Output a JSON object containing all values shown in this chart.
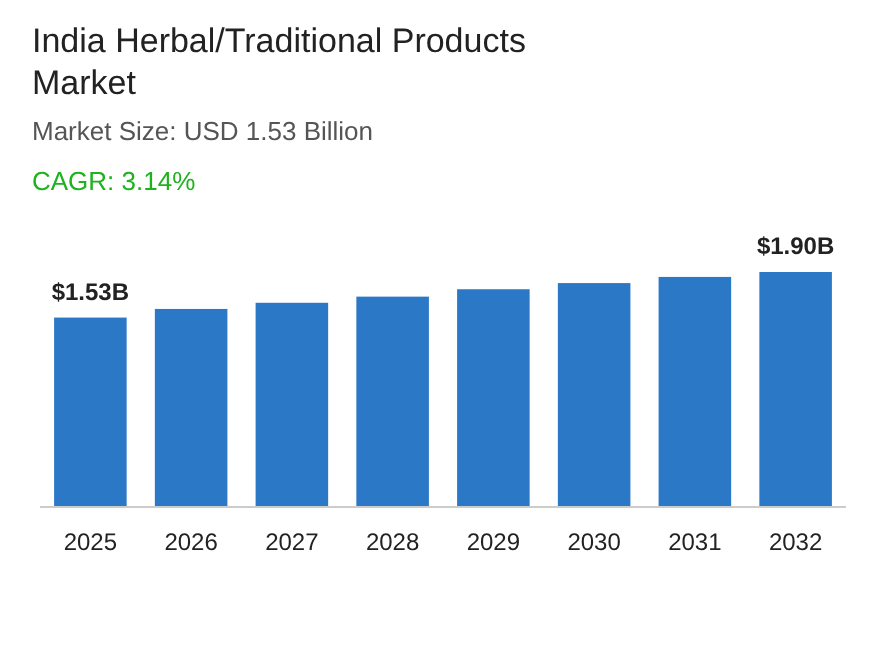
{
  "chart_data": {
    "type": "bar",
    "title": "India Herbal/Traditional Products Market",
    "subtitle": "Market Size: USD 1.53 Billion",
    "annotations": [
      "CAGR: 3.14%"
    ],
    "categories": [
      "2025",
      "2026",
      "2027",
      "2028",
      "2029",
      "2030",
      "2031",
      "2032"
    ],
    "values": [
      1.53,
      1.6,
      1.65,
      1.7,
      1.76,
      1.81,
      1.86,
      1.9
    ],
    "value_labels": [
      "$1.53B",
      null,
      null,
      null,
      null,
      null,
      null,
      "$1.90B"
    ],
    "color": "#2a78c6"
  }
}
